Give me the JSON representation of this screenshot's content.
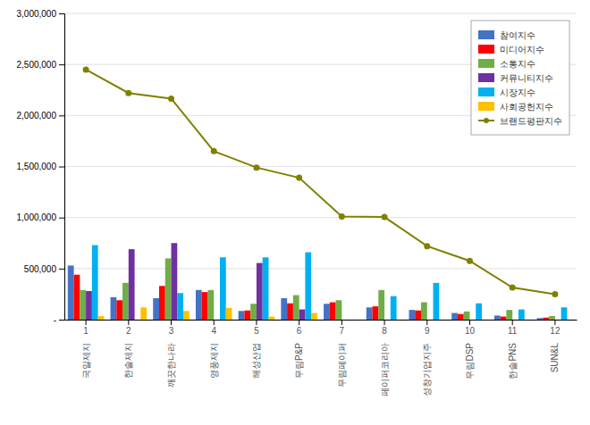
{
  "chart_data": {
    "type": "bar",
    "categories": [
      "국일제지",
      "한솔제지",
      "깨끗한나라",
      "영풍제지",
      "해성산업",
      "무림P&P",
      "무림페이퍼",
      "페이퍼코리아",
      "성창기업지주",
      "무림DSP",
      "한솔PNS",
      "SUN&L"
    ],
    "annotations": [
      "1",
      "2",
      "3",
      "4",
      "5",
      "6",
      "7",
      "8",
      "9",
      "10",
      "11",
      "12"
    ],
    "series": [
      {
        "name": "참여지수",
        "color": "#4472C4",
        "values": [
          530000,
          220000,
          210000,
          290000,
          85000,
          210000,
          155000,
          120000,
          95000,
          65000,
          40000,
          15000
        ]
      },
      {
        "name": "미디어지수",
        "color": "#FF0000",
        "values": [
          440000,
          190000,
          330000,
          270000,
          90000,
          160000,
          170000,
          130000,
          90000,
          55000,
          30000,
          20000
        ]
      },
      {
        "name": "소통지수",
        "color": "#70AD47",
        "values": [
          290000,
          360000,
          600000,
          290000,
          155000,
          240000,
          190000,
          290000,
          170000,
          80000,
          95000,
          35000
        ]
      },
      {
        "name": "커뮤니티지수",
        "color": "#7030A0",
        "values": [
          280000,
          690000,
          750000,
          0,
          555000,
          100000,
          0,
          0,
          0,
          0,
          0,
          0
        ]
      },
      {
        "name": "시장지수",
        "color": "#00B0F0",
        "values": [
          730000,
          0,
          260000,
          610000,
          610000,
          660000,
          0,
          230000,
          360000,
          160000,
          100000,
          120000
        ]
      },
      {
        "name": "사회공헌지수",
        "color": "#FFC000",
        "values": [
          35000,
          120000,
          85000,
          115000,
          30000,
          65000,
          0,
          0,
          0,
          0,
          0,
          0
        ]
      },
      {
        "name": "브랜드평판지수",
        "color": "#808000",
        "type": "line",
        "marker": "circle",
        "values": [
          2450000,
          2220000,
          2165000,
          1650000,
          1490000,
          1390000,
          1010000,
          1005000,
          720000,
          575000,
          315000,
          250000
        ]
      }
    ],
    "ylim": [
      0,
      3000000
    ],
    "yticks": [
      {
        "value": 0,
        "label": "-"
      },
      {
        "value": 500000,
        "label": "500,000"
      },
      {
        "value": 1000000,
        "label": "1,000,000"
      },
      {
        "value": 1500000,
        "label": "1,500,000"
      },
      {
        "value": 2000000,
        "label": "2,000,000"
      },
      {
        "value": 2500000,
        "label": "2,500,000"
      },
      {
        "value": 3000000,
        "label": "3,000,000"
      }
    ],
    "grid": true,
    "legend": "upper right"
  }
}
